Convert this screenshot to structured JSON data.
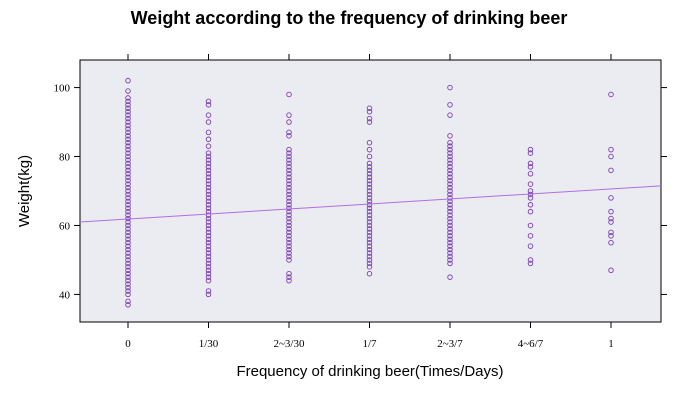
{
  "chart_data": {
    "type": "scatter",
    "title": "Weight according to the frequency of drinking beer",
    "xlabel": "Frequency of drinking beer(Times/Days)",
    "ylabel": "Weight(kg)",
    "categories": [
      "0",
      "1/30",
      "2~3/30",
      "1/7",
      "2~3/7",
      "4~6/7",
      "1"
    ],
    "y_ticks": [
      40,
      60,
      80,
      100
    ],
    "ylim": [
      32,
      108
    ],
    "point_color": "#7a3fb0",
    "line_color": "#b06ee0",
    "plot_background": "#ebebf2",
    "regression_line": {
      "y_start": 61,
      "y_end": 71.5
    },
    "points": [
      [
        37,
        38,
        40,
        41,
        42,
        43,
        44,
        45,
        46,
        47,
        48,
        49,
        50,
        51,
        52,
        53,
        54,
        55,
        56,
        57,
        58,
        59,
        60,
        61,
        62,
        63,
        64,
        65,
        66,
        67,
        68,
        69,
        70,
        71,
        72,
        73,
        74,
        75,
        76,
        77,
        78,
        79,
        80,
        81,
        82,
        83,
        84,
        85,
        86,
        87,
        88,
        89,
        90,
        91,
        92,
        93,
        94,
        95,
        96,
        97,
        99,
        102
      ],
      [
        40,
        41,
        44,
        45,
        46,
        47,
        48,
        49,
        50,
        51,
        52,
        53,
        54,
        55,
        56,
        57,
        58,
        59,
        60,
        61,
        62,
        63,
        64,
        65,
        66,
        67,
        68,
        69,
        70,
        71,
        72,
        73,
        74,
        75,
        76,
        77,
        78,
        79,
        80,
        81,
        83,
        85,
        87,
        90,
        92,
        95,
        96
      ],
      [
        44,
        45,
        46,
        50,
        51,
        52,
        53,
        54,
        55,
        56,
        57,
        58,
        59,
        60,
        61,
        62,
        63,
        64,
        65,
        66,
        67,
        68,
        69,
        70,
        71,
        72,
        73,
        74,
        75,
        76,
        77,
        78,
        79,
        80,
        81,
        82,
        86,
        87,
        90,
        92,
        98
      ],
      [
        46,
        48,
        49,
        50,
        51,
        52,
        53,
        54,
        55,
        56,
        57,
        58,
        59,
        60,
        61,
        62,
        63,
        64,
        65,
        66,
        67,
        68,
        69,
        70,
        71,
        72,
        73,
        74,
        75,
        76,
        77,
        78,
        80,
        82,
        84,
        90,
        91,
        93,
        94
      ],
      [
        45,
        49,
        50,
        51,
        52,
        53,
        54,
        55,
        56,
        57,
        58,
        59,
        60,
        61,
        62,
        63,
        64,
        65,
        66,
        67,
        68,
        69,
        70,
        71,
        72,
        73,
        74,
        75,
        76,
        77,
        78,
        79,
        80,
        81,
        82,
        83,
        84,
        86,
        92,
        95,
        100
      ],
      [
        49,
        50,
        54,
        57,
        60,
        64,
        66,
        68,
        69,
        70,
        72,
        75,
        77,
        78,
        81,
        82
      ],
      [
        47,
        55,
        57,
        58,
        61,
        62,
        64,
        68,
        76,
        80,
        82,
        98
      ]
    ]
  }
}
